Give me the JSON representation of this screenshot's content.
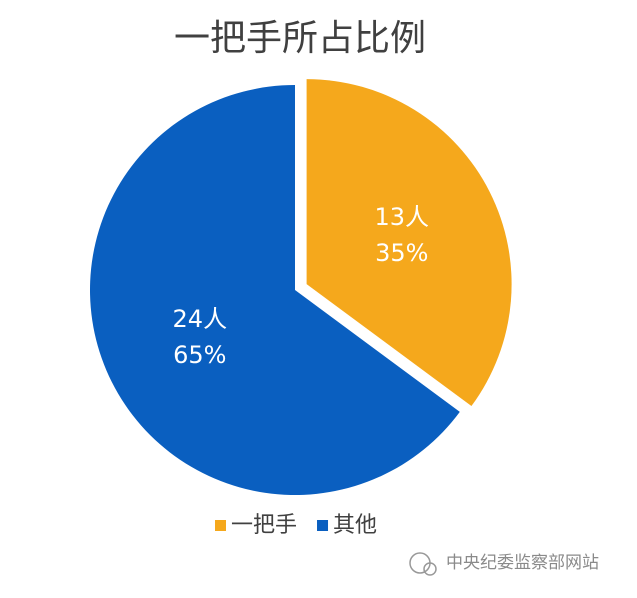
{
  "chart_data": {
    "type": "pie",
    "title": "一把手所占比例",
    "categories": [
      "一把手",
      "其他"
    ],
    "values": [
      13,
      24
    ],
    "value_labels": [
      "13人",
      "24人"
    ],
    "percent_labels": [
      "35%",
      "65%"
    ],
    "colors": [
      "#f5a81c",
      "#0a5fc0"
    ],
    "explode": [
      true,
      false
    ],
    "legend": "bottom"
  },
  "watermark": "中央纪委监察部网站"
}
